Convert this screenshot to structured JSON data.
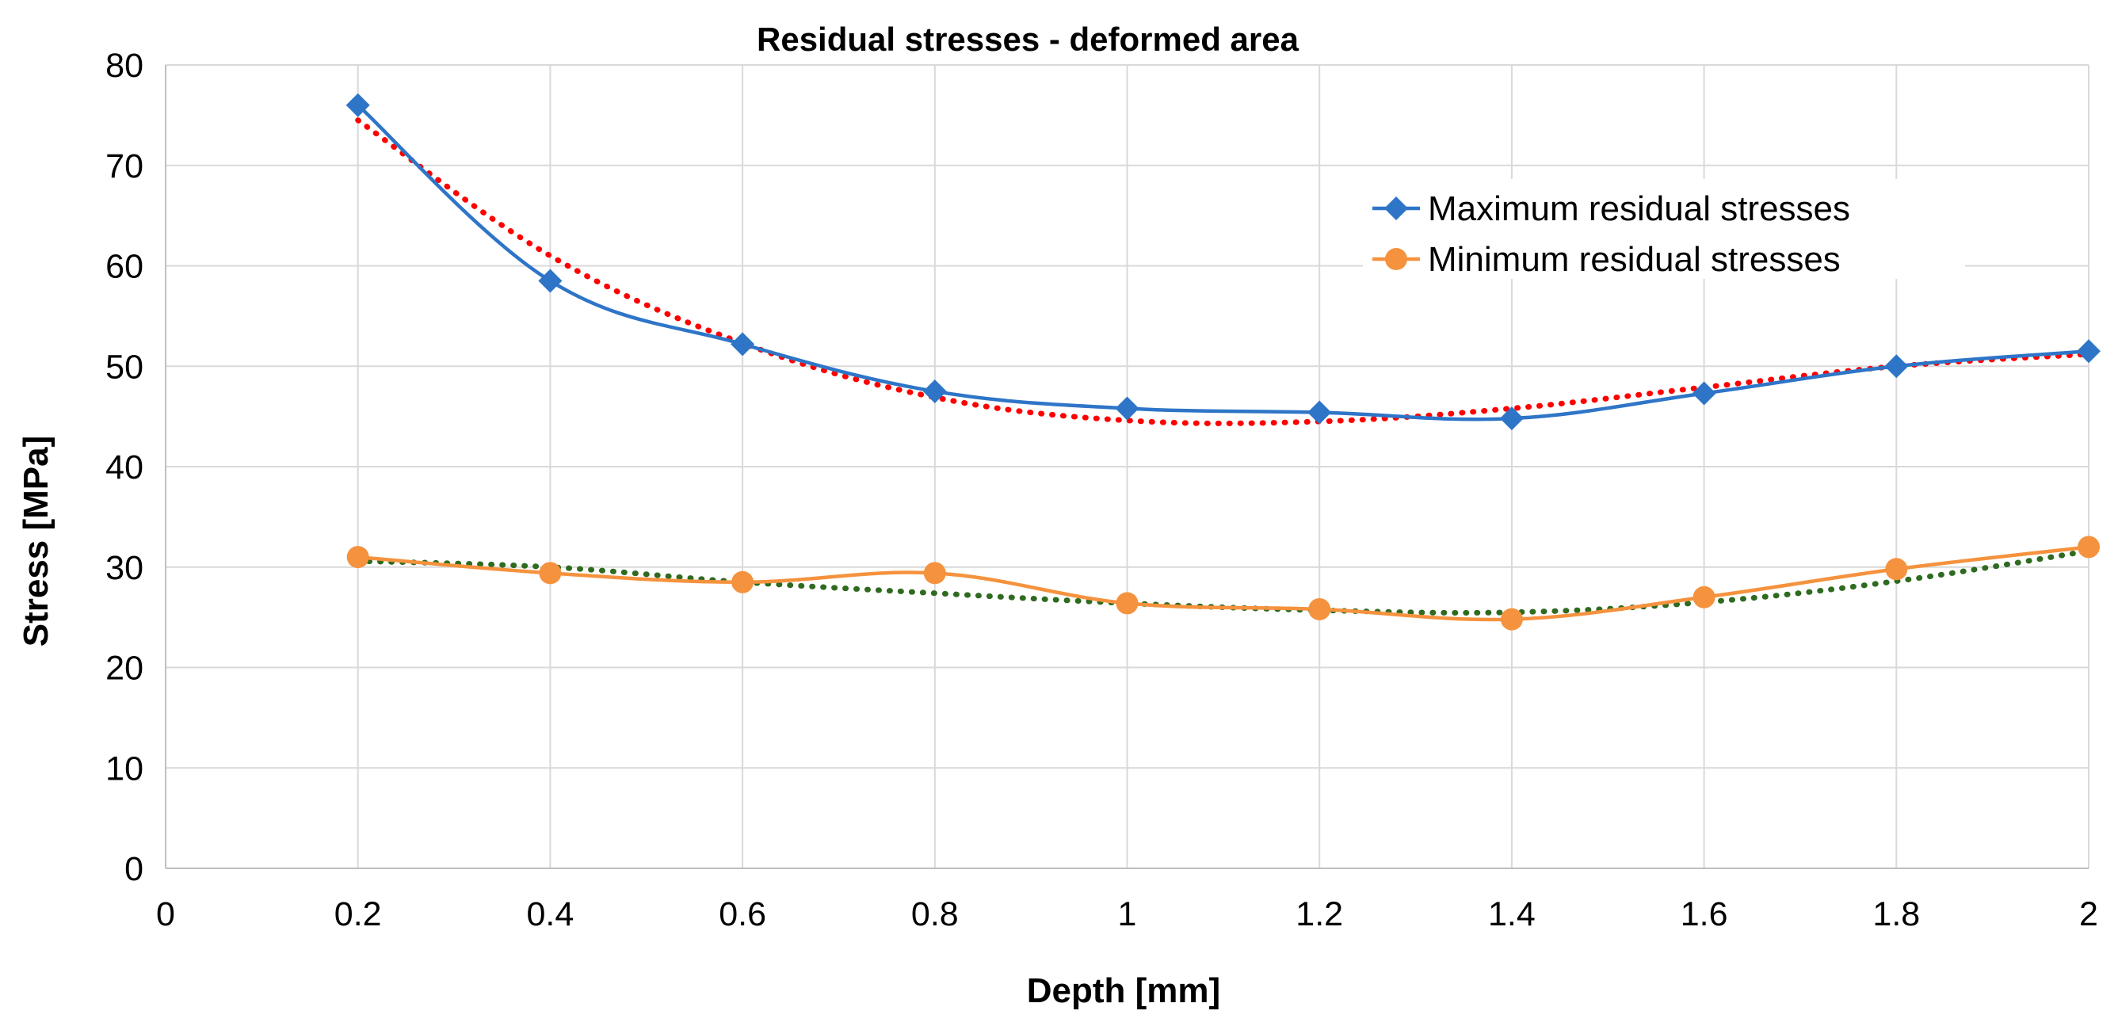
{
  "chart_data": {
    "type": "line",
    "title": "Residual stresses - deformed area",
    "xlabel": "Depth [mm]",
    "ylabel": "Stress [MPa]",
    "xlim": [
      0,
      2
    ],
    "ylim": [
      0,
      80
    ],
    "x_ticks": [
      0,
      0.2,
      0.4,
      0.6,
      0.8,
      1,
      1.2,
      1.4,
      1.6,
      1.8,
      2
    ],
    "x_tick_labels": [
      "0",
      "0.2",
      "0.4",
      "0.6",
      "0.8",
      "1",
      "1.2",
      "1.4",
      "1.6",
      "1.8",
      "2"
    ],
    "y_ticks": [
      0,
      10,
      20,
      30,
      40,
      50,
      60,
      70,
      80
    ],
    "y_tick_labels": [
      "0",
      "10",
      "20",
      "30",
      "40",
      "50",
      "60",
      "70",
      "80"
    ],
    "grid": true,
    "legend_position": "top-right",
    "x": [
      0.2,
      0.4,
      0.6,
      0.8,
      1.0,
      1.2,
      1.4,
      1.6,
      1.8,
      2.0
    ],
    "series": [
      {
        "name": "Maximum residual stresses",
        "color": "#2e75c8",
        "marker": "diamond",
        "values": [
          76.0,
          58.5,
          52.2,
          47.5,
          45.8,
          45.4,
          44.8,
          47.3,
          50.0,
          51.5
        ]
      },
      {
        "name": "Minimum residual stresses",
        "color": "#f5923e",
        "marker": "circle",
        "values": [
          31.0,
          29.4,
          28.5,
          29.4,
          26.4,
          25.8,
          24.8,
          27.0,
          29.8,
          32.0
        ]
      }
    ],
    "trendlines": [
      {
        "for_series": "Maximum residual stresses",
        "color": "#ff0000",
        "style": "dotted",
        "values": [
          74.5,
          61.0,
          52.3,
          46.9,
          44.6,
          44.5,
          45.8,
          47.9,
          50.0,
          51.2
        ]
      },
      {
        "for_series": "Minimum residual stresses",
        "color": "#2e6b1f",
        "style": "dotted",
        "values": [
          30.6,
          30.0,
          28.5,
          27.4,
          26.4,
          25.7,
          25.5,
          26.5,
          28.6,
          31.6
        ]
      }
    ]
  }
}
